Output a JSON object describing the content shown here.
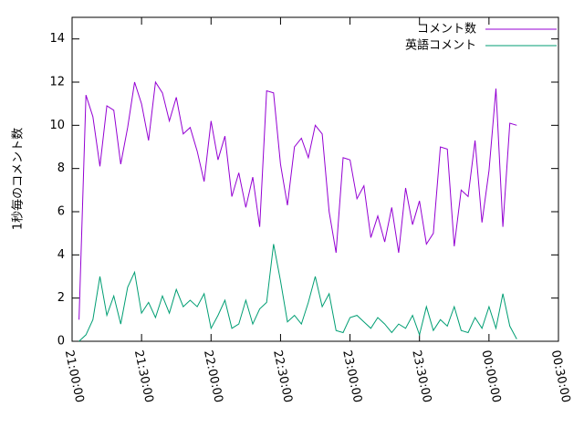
{
  "chart_data": {
    "type": "line",
    "ylabel": "1秒毎のコメント数",
    "x": [
      "21:03:00",
      "21:06:00",
      "21:09:00",
      "21:12:00",
      "21:15:00",
      "21:18:00",
      "21:21:00",
      "21:24:00",
      "21:27:00",
      "21:30:00",
      "21:33:00",
      "21:36:00",
      "21:39:00",
      "21:42:00",
      "21:45:00",
      "21:48:00",
      "21:51:00",
      "21:54:00",
      "21:57:00",
      "22:00:00",
      "22:03:00",
      "22:06:00",
      "22:09:00",
      "22:12:00",
      "22:15:00",
      "22:18:00",
      "22:21:00",
      "22:24:00",
      "22:27:00",
      "22:30:00",
      "22:33:00",
      "22:36:00",
      "22:39:00",
      "22:42:00",
      "22:45:00",
      "22:48:00",
      "22:51:00",
      "22:54:00",
      "22:57:00",
      "23:00:00",
      "23:03:00",
      "23:06:00",
      "23:09:00",
      "23:12:00",
      "23:15:00",
      "23:18:00",
      "23:21:00",
      "23:24:00",
      "23:27:00",
      "23:30:00",
      "23:33:00",
      "23:36:00",
      "23:39:00",
      "23:42:00",
      "23:45:00",
      "23:48:00",
      "23:51:00",
      "23:54:00",
      "23:57:00",
      "00:00:00",
      "00:03:00",
      "00:06:00",
      "00:09:00",
      "00:12:00"
    ],
    "series": [
      {
        "name": "コメント数",
        "color": "#9400d3",
        "values": [
          1.0,
          11.4,
          10.4,
          8.1,
          10.9,
          10.7,
          8.2,
          9.9,
          12.0,
          11.0,
          9.3,
          12.0,
          11.5,
          10.2,
          11.3,
          9.6,
          9.9,
          8.8,
          7.4,
          10.2,
          8.4,
          9.5,
          6.7,
          7.8,
          6.2,
          7.6,
          5.3,
          11.6,
          11.5,
          8.2,
          6.3,
          9.0,
          9.4,
          8.5,
          10.0,
          9.6,
          6.0,
          4.1,
          8.5,
          8.4,
          6.6,
          7.2,
          4.8,
          5.8,
          4.6,
          6.2,
          4.1,
          7.1,
          5.4,
          6.5,
          4.5,
          5.0,
          9.0,
          8.9,
          4.4,
          7.0,
          6.7,
          9.3,
          5.5,
          7.9,
          11.7,
          5.3,
          10.1,
          10.0
        ]
      },
      {
        "name": "英語コメント",
        "color": "#009e73",
        "values": [
          0.0,
          0.3,
          1.0,
          3.0,
          1.2,
          2.1,
          0.8,
          2.5,
          3.2,
          1.3,
          1.8,
          1.1,
          2.1,
          1.3,
          2.4,
          1.6,
          1.9,
          1.6,
          2.2,
          0.6,
          1.2,
          1.9,
          0.6,
          0.8,
          1.9,
          0.8,
          1.5,
          1.8,
          4.5,
          2.8,
          0.9,
          1.2,
          0.8,
          1.8,
          3.0,
          1.6,
          2.2,
          0.5,
          0.4,
          1.1,
          1.2,
          0.9,
          0.6,
          1.1,
          0.8,
          0.4,
          0.8,
          0.6,
          1.2,
          0.3,
          1.6,
          0.5,
          1.0,
          0.7,
          1.6,
          0.5,
          0.4,
          1.1,
          0.6,
          1.6,
          0.6,
          2.2,
          0.7,
          0.1
        ]
      }
    ],
    "xlim": [
      "21:00:00",
      "00:30:00"
    ],
    "xticks": [
      "21:00:00",
      "21:30:00",
      "22:00:00",
      "22:30:00",
      "23:00:00",
      "23:30:00",
      "00:00:00",
      "00:30:00"
    ],
    "ylim": [
      0,
      15
    ],
    "yticks": [
      0,
      2,
      4,
      6,
      8,
      10,
      12,
      14
    ],
    "legend": "top-right",
    "grid": false
  }
}
